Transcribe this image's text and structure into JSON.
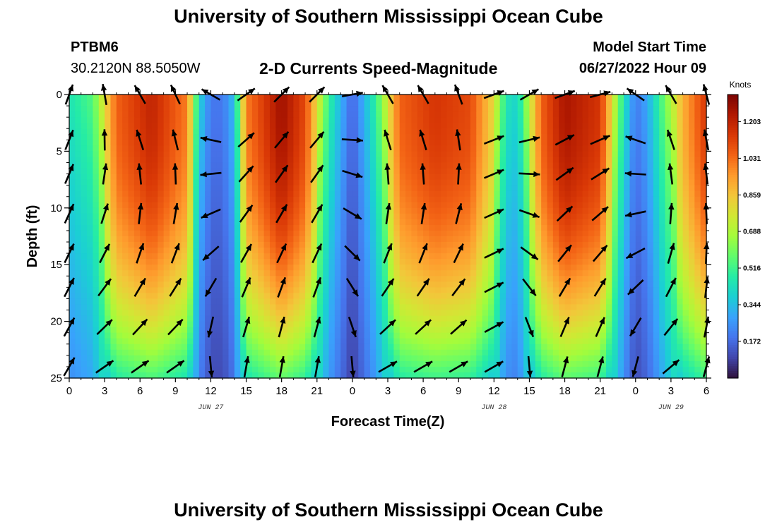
{
  "header": {
    "title": "University of Southern Mississippi Ocean Cube",
    "station_id": "PTBM6",
    "station_coords": "30.2120N  88.5050W",
    "subtitle": "2-D Currents Speed-Magnitude",
    "model_start_label": "Model Start Time",
    "model_start_value": "06/27/2022 Hour 09"
  },
  "footer": {
    "title": "University of Southern Mississippi Ocean Cube"
  },
  "chart_data": {
    "type": "heatmap",
    "title": "2-D Currents Speed-Magnitude",
    "xlabel": "Forecast Time(Z)",
    "ylabel": "Depth (ft)",
    "x_unit": "hours since Jun 27 00Z",
    "xlim": [
      0,
      54
    ],
    "ylim": [
      0,
      25
    ],
    "x_ticks": [
      0,
      3,
      6,
      9,
      12,
      15,
      18,
      21,
      24,
      27,
      30,
      33,
      36,
      39,
      42,
      45,
      48,
      51,
      54
    ],
    "x_tick_labels": [
      "0",
      "3",
      "6",
      "9",
      "12",
      "15",
      "18",
      "21",
      "0",
      "3",
      "6",
      "9",
      "12",
      "15",
      "18",
      "21",
      "0",
      "3",
      "6"
    ],
    "y_ticks": [
      0,
      5,
      10,
      15,
      20,
      25
    ],
    "y_tick_labels": [
      "0",
      "5",
      "10",
      "15",
      "20",
      "25"
    ],
    "date_labels": [
      {
        "x": 12,
        "text": "JUN 27"
      },
      {
        "x": 36,
        "text": "JUN 28"
      },
      {
        "x": 51,
        "text": "JUN 29"
      }
    ],
    "colorbar": {
      "unit_label": "Knots",
      "min": 0.0,
      "max": 1.33,
      "tick_values": [
        1.203,
        1.031,
        0.859,
        0.688,
        0.516,
        0.344,
        0.172
      ],
      "tick_labels": [
        "1.203",
        "1.031",
        "0.859",
        "0.688",
        "0.516",
        "0.344",
        "0.172"
      ],
      "colormap": [
        "#30123b",
        "#4145ab",
        "#4675ed",
        "#39a2fc",
        "#1bcfd4",
        "#24eca6",
        "#61fc6c",
        "#a4fc3b",
        "#d1e834",
        "#f3c63a",
        "#fe9b2d",
        "#f36315",
        "#d93806",
        "#b11901",
        "#7a0402"
      ]
    },
    "speed_surface": {
      "note": "approximate surface speed (knots) by forecast hour; speed decreases with depth",
      "hours": [
        0,
        2,
        4,
        7,
        10,
        11,
        12,
        13,
        14,
        15,
        18,
        20,
        22,
        24,
        26,
        28,
        31,
        34,
        36,
        37,
        38,
        40,
        42,
        45,
        47,
        48,
        49,
        52,
        54
      ],
      "speed": [
        0.45,
        0.55,
        1.05,
        1.2,
        1.0,
        0.4,
        0.2,
        0.2,
        0.35,
        1.0,
        1.27,
        1.1,
        0.5,
        0.15,
        0.5,
        1.05,
        1.15,
        1.1,
        0.8,
        0.45,
        0.4,
        1.05,
        1.25,
        1.15,
        0.45,
        0.2,
        0.3,
        0.9,
        1.15
      ]
    },
    "vectors": {
      "note": "current direction arrows (degrees clockwise from north), rows at depths 0,4,7,10.5,14,17,20.5,24",
      "depths": [
        0,
        4,
        7,
        10.5,
        14,
        17,
        20.5,
        24
      ],
      "hours": [
        0,
        3,
        6,
        9,
        12,
        15,
        18,
        21,
        24,
        27,
        30,
        33,
        36,
        39,
        42,
        45,
        48,
        51,
        54
      ],
      "surface_dir_deg": [
        20,
        350,
        330,
        335,
        300,
        55,
        45,
        45,
        80,
        330,
        330,
        340,
        70,
        60,
        70,
        75,
        305,
        330,
        345
      ],
      "bottom_dir_deg": [
        30,
        55,
        55,
        55,
        175,
        10,
        10,
        10,
        175,
        60,
        60,
        60,
        60,
        175,
        15,
        15,
        195,
        50,
        15
      ]
    }
  }
}
